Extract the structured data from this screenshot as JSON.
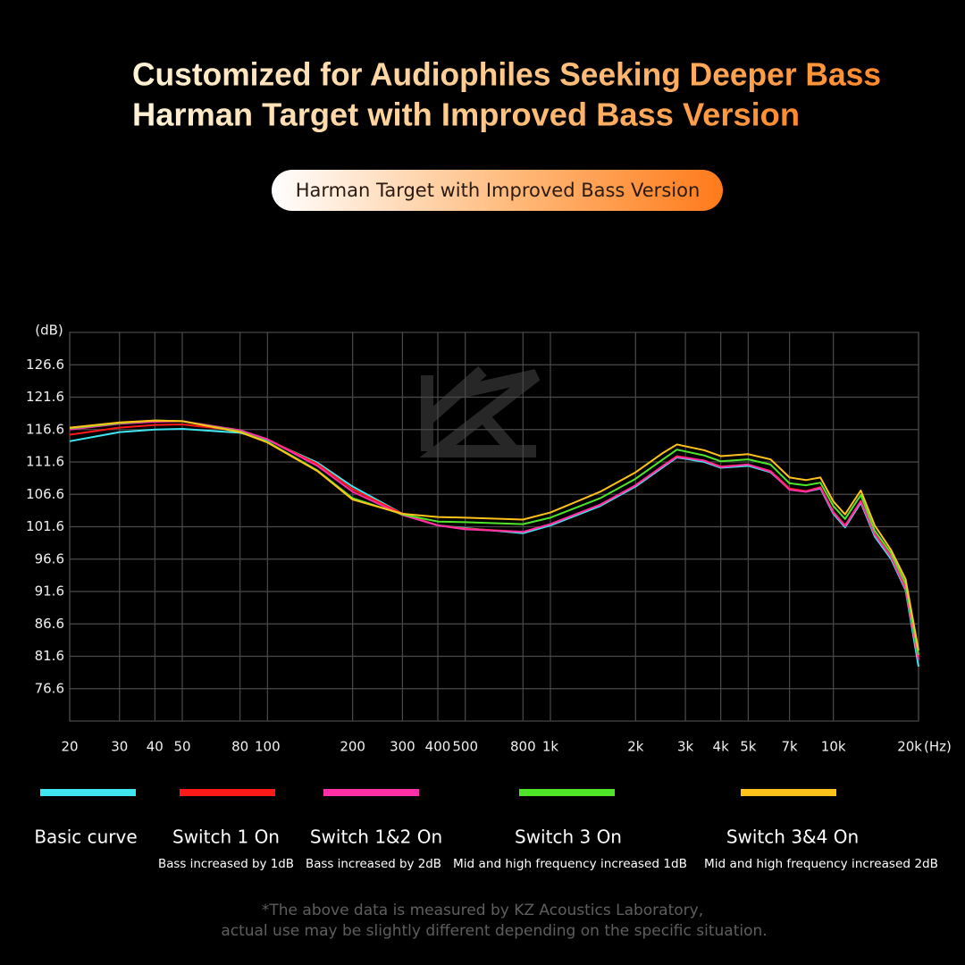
{
  "chart_data": {
    "type": "line",
    "title": "Customized for Audiophiles Seeking Deeper Bass",
    "subtitle": "Harman Target with Improved Bass Version",
    "badge": "Harman Target with Improved Bass Version",
    "y_label": "(dB)",
    "x_label": "(Hz)",
    "log_x": true,
    "grid": true,
    "xlim": [
      20,
      20000
    ],
    "ylim": [
      71.6,
      131.6
    ],
    "xticks": [
      20,
      30,
      40,
      50,
      80,
      100,
      200,
      300,
      400,
      500,
      800,
      {
        "value": 1000,
        "label": "1k"
      },
      {
        "value": 2000,
        "label": "2k"
      },
      {
        "value": 3000,
        "label": "3k"
      },
      {
        "value": 4000,
        "label": "4k"
      },
      {
        "value": 5000,
        "label": "5k"
      },
      {
        "value": 7000,
        "label": "7k"
      },
      {
        "value": 10000,
        "label": "10k"
      },
      {
        "value": 20000,
        "label": "20k"
      }
    ],
    "yticks": [
      76.6,
      81.6,
      86.6,
      91.6,
      96.6,
      101.6,
      106.6,
      111.6,
      116.6,
      121.6,
      126.6
    ],
    "x": [
      20,
      30,
      40,
      50,
      80,
      100,
      150,
      200,
      300,
      400,
      500,
      800,
      1000,
      1500,
      2000,
      2500,
      2800,
      3500,
      4000,
      5000,
      6000,
      7000,
      8000,
      9000,
      10000,
      11000,
      12500,
      14000,
      16000,
      18000,
      20000
    ],
    "series": [
      {
        "name": "Basic curve",
        "color": "#3fe6f0",
        "values": [
          114.8,
          116.2,
          116.6,
          116.7,
          116.1,
          115.0,
          111.5,
          107.8,
          103.6,
          101.8,
          101.4,
          100.6,
          101.8,
          104.8,
          107.8,
          110.8,
          112.3,
          111.6,
          110.7,
          111.0,
          110.0,
          107.4,
          107.0,
          107.5,
          103.6,
          101.5,
          105.3,
          100.1,
          96.6,
          91.8,
          80.0
        ]
      },
      {
        "name": "Switch 1 On",
        "note": "Bass increased by 1dB",
        "color": "#ff1a1a",
        "values": [
          115.8,
          116.9,
          117.3,
          117.4,
          116.4,
          115.1,
          111.3,
          107.4,
          103.6,
          101.8,
          101.3,
          100.8,
          102.0,
          105.0,
          108.0,
          111.0,
          112.5,
          111.8,
          110.9,
          111.2,
          110.2,
          107.5,
          107.1,
          107.7,
          103.9,
          101.8,
          105.6,
          100.5,
          97.0,
          92.2,
          81.5
        ]
      },
      {
        "name": "Switch 1&2 On",
        "note": "Bass increased by 2dB",
        "color": "#ff2fa8",
        "values": [
          116.6,
          117.5,
          117.8,
          117.9,
          116.5,
          115.1,
          111.0,
          107.0,
          103.4,
          101.8,
          101.2,
          100.8,
          102.0,
          105.0,
          108.0,
          111.0,
          112.4,
          111.8,
          110.8,
          111.2,
          110.1,
          107.3,
          107.0,
          107.6,
          103.8,
          101.7,
          105.5,
          100.4,
          96.9,
          92.0,
          81.0
        ]
      },
      {
        "name": "Switch 3 On",
        "note": "Mid and high frequency increased 1dB",
        "color": "#4fe62a",
        "values": [
          116.8,
          117.6,
          118.0,
          117.9,
          116.3,
          114.7,
          110.3,
          106.0,
          103.5,
          102.4,
          102.3,
          102.0,
          103.0,
          106.0,
          109.0,
          112.0,
          113.5,
          112.6,
          111.7,
          112.0,
          111.2,
          108.3,
          108.0,
          108.4,
          104.8,
          102.8,
          106.5,
          101.0,
          97.5,
          92.8,
          81.8
        ]
      },
      {
        "name": "Switch 3&4 On",
        "note": "Mid and high frequency increased 2dB",
        "color": "#ffc21a",
        "values": [
          116.9,
          117.7,
          118.0,
          117.9,
          116.2,
          114.6,
          110.2,
          105.8,
          103.6,
          103.1,
          103.0,
          102.7,
          103.8,
          107.0,
          110.0,
          113.0,
          114.3,
          113.4,
          112.5,
          112.8,
          112.0,
          109.2,
          108.8,
          109.2,
          105.5,
          103.5,
          107.2,
          101.8,
          98.0,
          93.5,
          82.5
        ]
      }
    ],
    "footnote": [
      "*The above data is measured by KZ Acoustics Laboratory,",
      "actual use may be slightly different depending on the specific situation."
    ]
  }
}
